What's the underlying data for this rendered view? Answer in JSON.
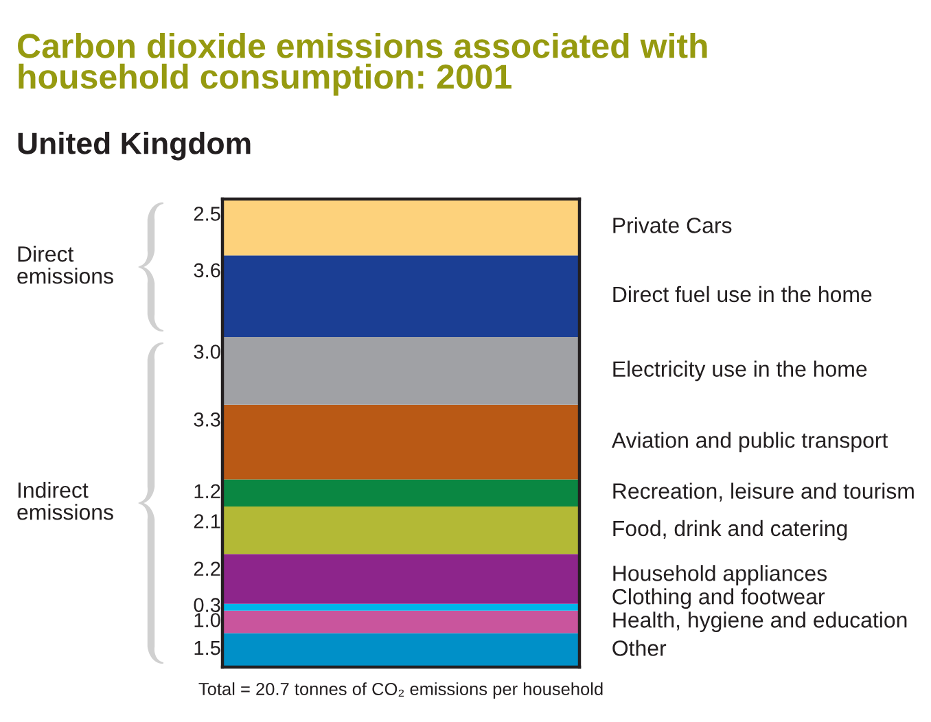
{
  "chart_data": {
    "type": "bar",
    "stacked": true,
    "title": "Carbon dioxide emissions associated with\nhousehold consumption: 2001",
    "subtitle": "United Kingdom",
    "categories": [
      null
    ],
    "series": [
      {
        "name": "Other",
        "color": "#0090c8",
        "values": [
          1.5
        ],
        "value_labels": [
          "1.5"
        ]
      },
      {
        "name": "Health, hygiene and education",
        "color": "#c9559d",
        "values": [
          1.0
        ],
        "value_labels": [
          "1.0"
        ]
      },
      {
        "name": "Clothing and footwear",
        "color": "#00b5ea",
        "values": [
          0.3
        ],
        "value_labels": [
          "0.3"
        ]
      },
      {
        "name": "Household appliances",
        "color": "#8d258b",
        "values": [
          2.2
        ],
        "value_labels": [
          "2.2"
        ]
      },
      {
        "name": "Food, drink and catering",
        "color": "#b3b936",
        "values": [
          2.1
        ],
        "value_labels": [
          "2.1"
        ]
      },
      {
        "name": "Recreation, leisure and tourism",
        "color": "#0a8742",
        "values": [
          1.2
        ],
        "value_labels": [
          "1.2"
        ]
      },
      {
        "name": "Aviation and public transport",
        "color": "#b95915",
        "values": [
          3.3
        ],
        "value_labels": [
          "3.3"
        ]
      },
      {
        "name": "Electricity use in the home",
        "color": "#a0a1a5",
        "values": [
          3.0
        ],
        "value_labels": [
          "3.0"
        ]
      },
      {
        "name": "Direct fuel use in the home",
        "color": "#1b3e94",
        "values": [
          3.6
        ],
        "value_labels": [
          "3.6"
        ]
      },
      {
        "name": "Private Cars",
        "color": "#fdd27c",
        "values": [
          2.5
        ],
        "value_labels": [
          "2.5"
        ]
      }
    ],
    "annotations": [
      "Direct\nemissions",
      "Indirect\nemissions",
      "Total = 20.7 tonnes of CO₂ emissions per household"
    ]
  }
}
